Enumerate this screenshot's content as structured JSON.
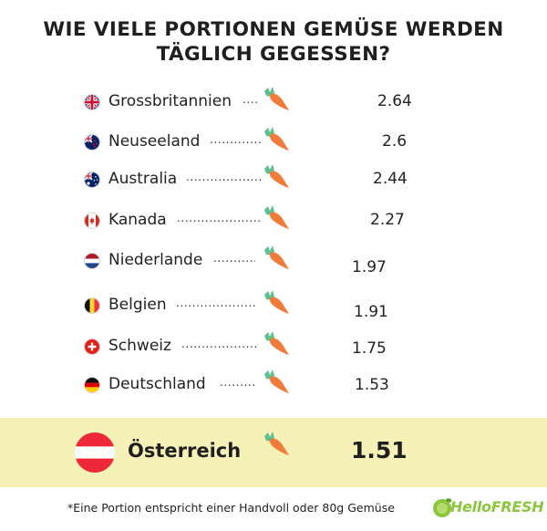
{
  "title_line1": "WIE VIELE PORTIONEN GEMÜSE WERDEN",
  "title_line2": "TÄGLICH GEGESSEN?",
  "chart_data": {
    "type": "bar",
    "title": "WIE VIELE PORTIONEN GEMÜSE WERDEN TÄGLICH GEGESSEN?",
    "categories": [
      "Grossbritannien",
      "Neuseeland",
      "Australia",
      "Kanada",
      "Niederlande",
      "Belgien",
      "Schweiz",
      "Deutschland",
      "Österreich"
    ],
    "values": [
      2.64,
      2.6,
      2.44,
      2.27,
      1.97,
      1.91,
      1.75,
      1.53,
      1.51
    ],
    "value_labels": [
      "2.64",
      "2.6",
      "2.44",
      "2.27",
      "1.97",
      "1.91",
      "1.75",
      "1.53",
      "1.51"
    ],
    "highlighted_category": "Österreich",
    "unit_icon": "carrot-icon"
  },
  "rows": [
    {
      "country": "Grossbritannien",
      "dots": "....",
      "value": "2.64",
      "flag": "uk-flag-icon"
    },
    {
      "country": "Neuseeland",
      "dots": "..............",
      "value": "2.6",
      "flag": "new-zealand-flag-icon"
    },
    {
      "country": "Australia",
      "dots": "....................",
      "value": "2.44",
      "flag": "australia-flag-icon"
    },
    {
      "country": "Kanada",
      "dots": "...........................",
      "value": "2.27",
      "flag": "canada-flag-icon"
    },
    {
      "country": "Niederlande",
      "dots": "...........",
      "value": "1.97",
      "flag": "netherlands-flag-icon"
    },
    {
      "country": "Belgien",
      "dots": "........................",
      "value": "1.91",
      "flag": "belgium-flag-icon"
    },
    {
      "country": "Schweiz",
      "dots": "......................",
      "value": "1.75",
      "flag": "switzerland-flag-icon"
    },
    {
      "country": "Deutschland",
      "dots": "..........",
      "value": "1.53",
      "flag": "germany-flag-icon"
    }
  ],
  "highlight": {
    "country": "Österreich",
    "value": "1.51",
    "flag": "austria-flag-icon"
  },
  "footnote": "*Eine Portion entspricht einer Handvoll oder 80g Gemüse",
  "logo_text": "HelloFRESH",
  "colors": {
    "carrot": "#f07b3a",
    "leaf": "#5fbf8f",
    "highlight_band": "#f6f1b6",
    "logo_green": "#8cc63f"
  }
}
